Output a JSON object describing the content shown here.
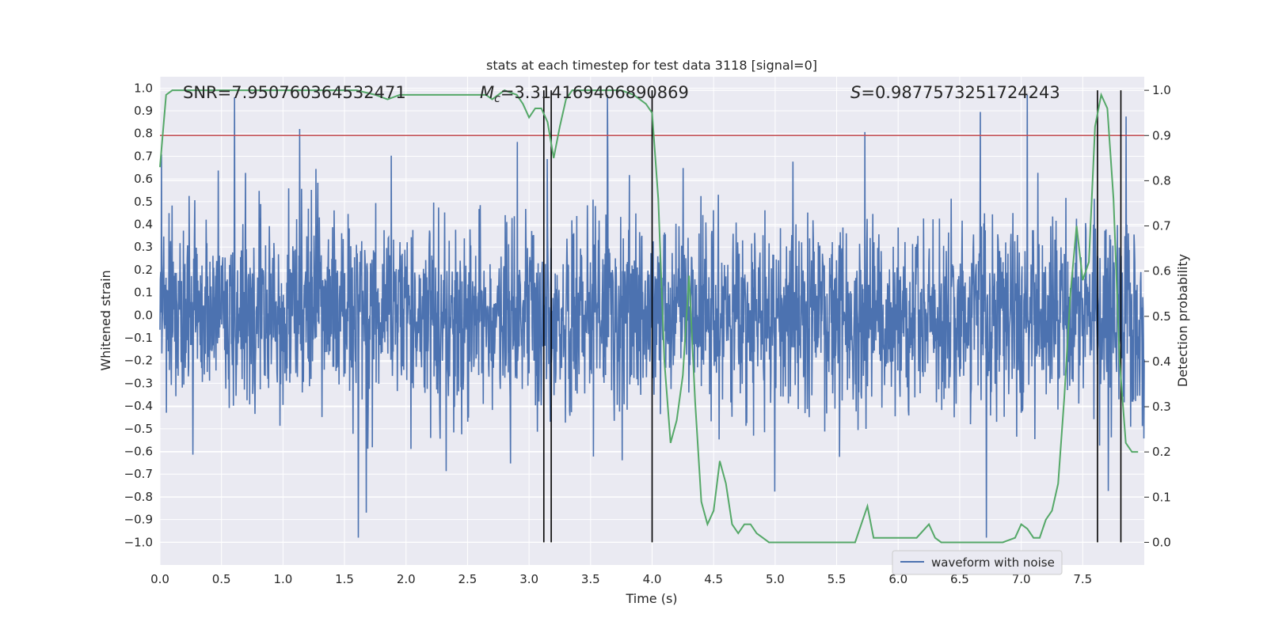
{
  "chart_data": {
    "type": "line",
    "title": "stats at each timestep for test data 3118 [signal=0]",
    "xlabel": "Time (s)",
    "ylabel": "Whitened strain",
    "y2label": "Detection probability",
    "xlim": [
      0.0,
      8.0
    ],
    "ylim": [
      -1.1,
      1.05
    ],
    "y2lim": [
      -0.05,
      1.03
    ],
    "xticks": [
      "0.0",
      "0.5",
      "1.0",
      "1.5",
      "2.0",
      "2.5",
      "3.0",
      "3.5",
      "4.0",
      "4.5",
      "5.0",
      "5.5",
      "6.0",
      "6.5",
      "7.0",
      "7.5"
    ],
    "yticks": [
      "1.0",
      "0.9",
      "0.8",
      "0.7",
      "0.6",
      "0.5",
      "0.4",
      "0.3",
      "0.2",
      "0.1",
      "0.0",
      "−0.1",
      "−0.2",
      "−0.3",
      "−0.4",
      "−0.5",
      "−0.6",
      "−0.7",
      "−0.8",
      "−0.9",
      "−1.0"
    ],
    "y2ticks": [
      "1.0",
      "0.9",
      "0.8",
      "0.7",
      "0.6",
      "0.5",
      "0.4",
      "0.3",
      "0.2",
      "0.1",
      "0.0"
    ],
    "annotations": {
      "snr": "SNR=7.950760364532471",
      "mc_symbol": "M",
      "mc_sub": "c",
      "mc_value": "=3.314169406890869",
      "s_symbol": "S",
      "s_value": "=0.9877573251724243"
    },
    "legend": {
      "label": "waveform with noise",
      "placement": "lower-right"
    },
    "threshold_line": {
      "y2": 0.9,
      "color": "#c44e52"
    },
    "vertical_lines": [
      3.12,
      3.18,
      4.0,
      7.62,
      7.81
    ],
    "series": [
      {
        "name": "waveform with noise",
        "axis": "left",
        "color": "#4c72b0",
        "description": "dense whitened strain noise, amplitude ~0.5 typical, peaks to ~±0.95"
      },
      {
        "name": "Detection probability",
        "axis": "right",
        "color": "#55a868",
        "x": [
          0.0,
          0.05,
          0.1,
          0.2,
          0.4,
          0.6,
          0.8,
          1.0,
          1.2,
          1.4,
          1.6,
          1.75,
          1.85,
          1.95,
          2.05,
          2.15,
          2.25,
          2.35,
          2.45,
          2.55,
          2.65,
          2.7,
          2.75,
          2.8,
          2.9,
          2.95,
          3.0,
          3.05,
          3.1,
          3.15,
          3.2,
          3.25,
          3.3,
          3.35,
          3.45,
          3.55,
          3.65,
          3.75,
          3.85,
          3.95,
          4.0,
          4.05,
          4.1,
          4.15,
          4.2,
          4.25,
          4.3,
          4.35,
          4.4,
          4.45,
          4.5,
          4.55,
          4.6,
          4.65,
          4.7,
          4.75,
          4.8,
          4.85,
          4.9,
          4.95,
          5.0,
          5.1,
          5.3,
          5.5,
          5.6,
          5.65,
          5.7,
          5.75,
          5.8,
          5.9,
          6.0,
          6.05,
          6.1,
          6.15,
          6.25,
          6.3,
          6.35,
          6.4,
          6.5,
          6.6,
          6.7,
          6.85,
          6.95,
          7.0,
          7.05,
          7.1,
          7.15,
          7.2,
          7.25,
          7.3,
          7.35,
          7.4,
          7.45,
          7.5,
          7.55,
          7.6,
          7.65,
          7.7,
          7.75,
          7.8,
          7.85,
          7.9,
          7.95
        ],
        "values": [
          0.83,
          0.99,
          1.0,
          1.0,
          1.0,
          1.0,
          1.0,
          1.0,
          1.0,
          1.0,
          1.0,
          0.99,
          0.98,
          0.99,
          0.99,
          0.99,
          0.99,
          0.99,
          0.99,
          0.99,
          0.99,
          0.98,
          0.99,
          1.0,
          0.99,
          0.97,
          0.94,
          0.96,
          0.96,
          0.93,
          0.85,
          0.92,
          0.98,
          1.0,
          1.0,
          1.0,
          1.0,
          1.0,
          0.99,
          0.97,
          0.95,
          0.76,
          0.4,
          0.22,
          0.27,
          0.37,
          0.59,
          0.31,
          0.09,
          0.04,
          0.07,
          0.18,
          0.13,
          0.04,
          0.02,
          0.04,
          0.04,
          0.02,
          0.01,
          0.0,
          0.0,
          0.0,
          0.0,
          0.0,
          0.0,
          0.0,
          0.04,
          0.08,
          0.01,
          0.01,
          0.01,
          0.01,
          0.01,
          0.01,
          0.04,
          0.01,
          0.0,
          0.0,
          0.0,
          0.0,
          0.0,
          0.0,
          0.01,
          0.04,
          0.03,
          0.01,
          0.01,
          0.05,
          0.07,
          0.13,
          0.32,
          0.55,
          0.7,
          0.58,
          0.62,
          0.92,
          0.99,
          0.96,
          0.76,
          0.4,
          0.22,
          0.2,
          0.2
        ]
      }
    ]
  }
}
